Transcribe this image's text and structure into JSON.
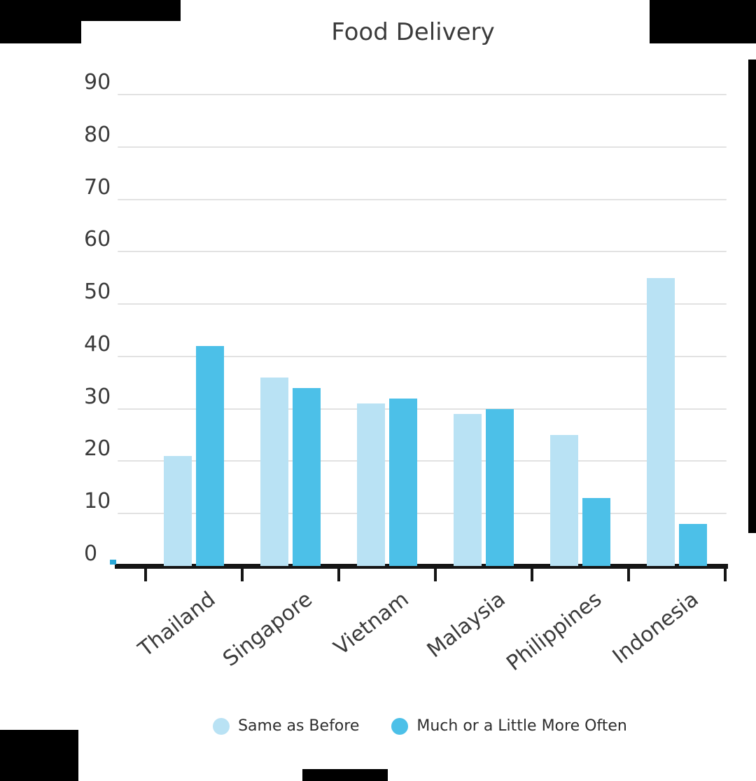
{
  "chart_data": {
    "type": "bar",
    "title": "Food Delivery",
    "categories": [
      "Thailand",
      "Singapore",
      "Vietnam",
      "Malaysia",
      "Philippines",
      "Indonesia"
    ],
    "series": [
      {
        "name": "Same as Before",
        "color": "#b9e2f4",
        "values": [
          21,
          36,
          31,
          29,
          25,
          55
        ]
      },
      {
        "name": "Much or a Little More Often",
        "color": "#4cc0e8",
        "values": [
          42,
          34,
          32,
          30,
          13,
          8
        ]
      }
    ],
    "xlabel": "",
    "ylabel": "",
    "ylim": [
      0,
      90
    ],
    "yticks": [
      90,
      80,
      70,
      60,
      50,
      40,
      30,
      20,
      10,
      0
    ],
    "grid": true,
    "legend_position": "bottom",
    "grid_color": "#e2e2e2",
    "axis_color": "#151515",
    "text_color": "#3b3b3b"
  }
}
